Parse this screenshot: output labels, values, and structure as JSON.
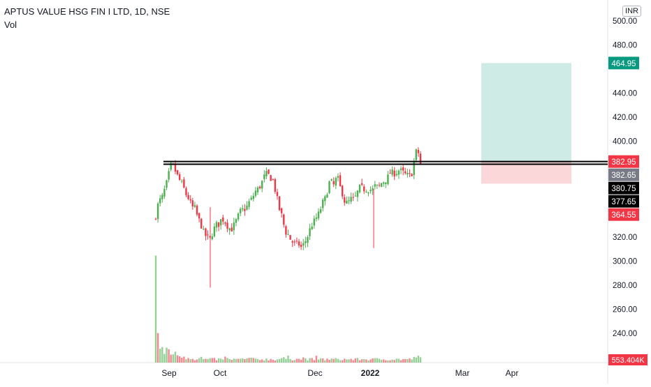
{
  "header": {
    "title": "APTUS VALUE HSG FIN I LTD, 1D, NSE",
    "indicator": "Vol",
    "currency": "INR"
  },
  "chart_data": {
    "type": "candlestick",
    "y_axis": {
      "ticks": [
        "240.00",
        "260.00",
        "280.00",
        "300.00",
        "320.00",
        "400.00",
        "420.00",
        "440.00",
        "480.00",
        "500.00"
      ],
      "range": [
        225,
        508
      ]
    },
    "x_axis": {
      "ticks": [
        "Sep",
        "Oct",
        "Dec",
        "2022",
        "Mar",
        "Apr"
      ]
    },
    "price_labels": [
      {
        "value": 464.95,
        "text": "464.95",
        "color": "#089981"
      },
      {
        "value": 382.95,
        "text": "382.95",
        "color": "#f23645"
      },
      {
        "value": 382.65,
        "text": "382.65",
        "color": "#787b86"
      },
      {
        "value": 380.75,
        "text": "380.75",
        "color": "#000000"
      },
      {
        "value": 377.65,
        "text": "377.65",
        "color": "#000000"
      },
      {
        "value": 364.55,
        "text": "364.55",
        "color": "#f23645"
      }
    ],
    "volume_label": {
      "text": "553.404K",
      "color": "#f23645"
    },
    "horizontal_lines": [
      382.95,
      380.75
    ],
    "position": {
      "entry": 382.65,
      "target": 464.95,
      "stop": 364.55
    },
    "close_path": [
      [
        0,
        338
      ],
      [
        3,
        350
      ],
      [
        6,
        352
      ],
      [
        9,
        360
      ],
      [
        12,
        368
      ],
      [
        14,
        377
      ],
      [
        16,
        381
      ],
      [
        18,
        378
      ],
      [
        21,
        372
      ],
      [
        24,
        367
      ],
      [
        27,
        363
      ],
      [
        30,
        356
      ],
      [
        33,
        352
      ],
      [
        36,
        345
      ],
      [
        39,
        344
      ],
      [
        42,
        336
      ],
      [
        45,
        331
      ],
      [
        48,
        323
      ],
      [
        51,
        320
      ],
      [
        54,
        318
      ],
      [
        57,
        325
      ],
      [
        60,
        330
      ],
      [
        63,
        331
      ],
      [
        66,
        336
      ],
      [
        69,
        333
      ],
      [
        72,
        329
      ],
      [
        75,
        326
      ],
      [
        78,
        330
      ],
      [
        81,
        335
      ],
      [
        84,
        341
      ],
      [
        87,
        343
      ],
      [
        90,
        344
      ],
      [
        93,
        349
      ],
      [
        96,
        352
      ],
      [
        99,
        358
      ],
      [
        102,
        360
      ],
      [
        105,
        364
      ],
      [
        108,
        370
      ],
      [
        111,
        373
      ],
      [
        114,
        370
      ],
      [
        117,
        367
      ],
      [
        120,
        356
      ],
      [
        123,
        344
      ],
      [
        126,
        337
      ],
      [
        129,
        325
      ],
      [
        132,
        322
      ],
      [
        135,
        317
      ],
      [
        138,
        315
      ],
      [
        140,
        313
      ],
      [
        142,
        316
      ],
      [
        144,
        311
      ],
      [
        146,
        312
      ],
      [
        148,
        315
      ],
      [
        150,
        318
      ],
      [
        152,
        322
      ],
      [
        154,
        327
      ],
      [
        156,
        331
      ],
      [
        158,
        333
      ],
      [
        160,
        336
      ],
      [
        163,
        340
      ],
      [
        166,
        348
      ],
      [
        169,
        352
      ],
      [
        172,
        362
      ],
      [
        174,
        368
      ],
      [
        176,
        364
      ],
      [
        178,
        363
      ],
      [
        180,
        369
      ],
      [
        182,
        368
      ],
      [
        184,
        361
      ],
      [
        186,
        357
      ],
      [
        189,
        348
      ],
      [
        192,
        349
      ],
      [
        195,
        352
      ],
      [
        198,
        351
      ],
      [
        201,
        357
      ],
      [
        204,
        362
      ],
      [
        207,
        360
      ],
      [
        210,
        360
      ],
      [
        213,
        360
      ],
      [
        216,
        359
      ],
      [
        219,
        363
      ],
      [
        222,
        361
      ],
      [
        225,
        365
      ],
      [
        228,
        367
      ],
      [
        231,
        369
      ],
      [
        234,
        374
      ],
      [
        237,
        373
      ],
      [
        240,
        374
      ],
      [
        243,
        376
      ],
      [
        246,
        374
      ],
      [
        249,
        372
      ],
      [
        252,
        371
      ],
      [
        255,
        372
      ],
      [
        258,
        385
      ],
      [
        260,
        392
      ],
      [
        262,
        390
      ],
      [
        264,
        381
      ]
    ],
    "volume_path": [
      [
        0,
        0.55
      ],
      [
        3,
        0.08
      ],
      [
        6,
        0.07
      ],
      [
        9,
        0.06
      ],
      [
        12,
        0.1
      ],
      [
        14,
        0.05
      ],
      [
        16,
        0.07
      ],
      [
        18,
        0.05
      ],
      [
        21,
        0.05
      ],
      [
        24,
        0.04
      ],
      [
        27,
        0.04
      ],
      [
        30,
        0.03
      ],
      [
        33,
        0.03
      ],
      [
        36,
        0.03
      ],
      [
        39,
        0.02
      ],
      [
        42,
        0.02
      ],
      [
        45,
        0.03
      ],
      [
        48,
        0.02
      ],
      [
        51,
        0.02
      ],
      [
        54,
        0.02
      ],
      [
        57,
        0.02
      ],
      [
        60,
        0.02
      ],
      [
        63,
        0.02
      ],
      [
        66,
        0.02
      ],
      [
        69,
        0.03
      ],
      [
        72,
        0.02
      ],
      [
        75,
        0.02
      ],
      [
        78,
        0.02
      ],
      [
        81,
        0.02
      ],
      [
        84,
        0.02
      ],
      [
        87,
        0.02
      ],
      [
        90,
        0.02
      ],
      [
        93,
        0.03
      ],
      [
        96,
        0.02
      ],
      [
        99,
        0.02
      ],
      [
        102,
        0.02
      ],
      [
        105,
        0.02
      ],
      [
        108,
        0.02
      ],
      [
        111,
        0.02
      ],
      [
        114,
        0.02
      ],
      [
        117,
        0.02
      ],
      [
        120,
        0.02
      ],
      [
        123,
        0.02
      ],
      [
        126,
        0.03
      ],
      [
        129,
        0.02
      ],
      [
        132,
        0.03
      ],
      [
        135,
        0.02
      ],
      [
        138,
        0.02
      ],
      [
        140,
        0.04
      ],
      [
        142,
        0.02
      ],
      [
        144,
        0.02
      ],
      [
        146,
        0.02
      ],
      [
        148,
        0.03
      ],
      [
        150,
        0.02
      ],
      [
        152,
        0.02
      ],
      [
        154,
        0.02
      ],
      [
        156,
        0.02
      ],
      [
        158,
        0.02
      ],
      [
        160,
        0.03
      ],
      [
        163,
        0.02
      ],
      [
        166,
        0.02
      ],
      [
        169,
        0.02
      ],
      [
        172,
        0.02
      ],
      [
        174,
        0.02
      ],
      [
        176,
        0.02
      ],
      [
        178,
        0.02
      ],
      [
        180,
        0.02
      ],
      [
        182,
        0.02
      ],
      [
        184,
        0.02
      ],
      [
        186,
        0.02
      ],
      [
        189,
        0.02
      ],
      [
        192,
        0.02
      ],
      [
        195,
        0.02
      ],
      [
        198,
        0.02
      ],
      [
        201,
        0.02
      ],
      [
        204,
        0.02
      ],
      [
        207,
        0.02
      ],
      [
        210,
        0.02
      ],
      [
        213,
        0.02
      ],
      [
        216,
        0.02
      ],
      [
        219,
        0.02
      ],
      [
        222,
        0.02
      ],
      [
        225,
        0.02
      ],
      [
        228,
        0.02
      ],
      [
        231,
        0.02
      ],
      [
        234,
        0.02
      ],
      [
        237,
        0.02
      ],
      [
        240,
        0.02
      ],
      [
        243,
        0.02
      ],
      [
        246,
        0.02
      ],
      [
        249,
        0.02
      ],
      [
        252,
        0.02
      ],
      [
        255,
        0.02
      ],
      [
        258,
        0.03
      ],
      [
        260,
        0.04
      ],
      [
        262,
        0.03
      ],
      [
        264,
        0.03
      ]
    ],
    "up_color": "#4caf50",
    "down_color": "#f23645"
  }
}
